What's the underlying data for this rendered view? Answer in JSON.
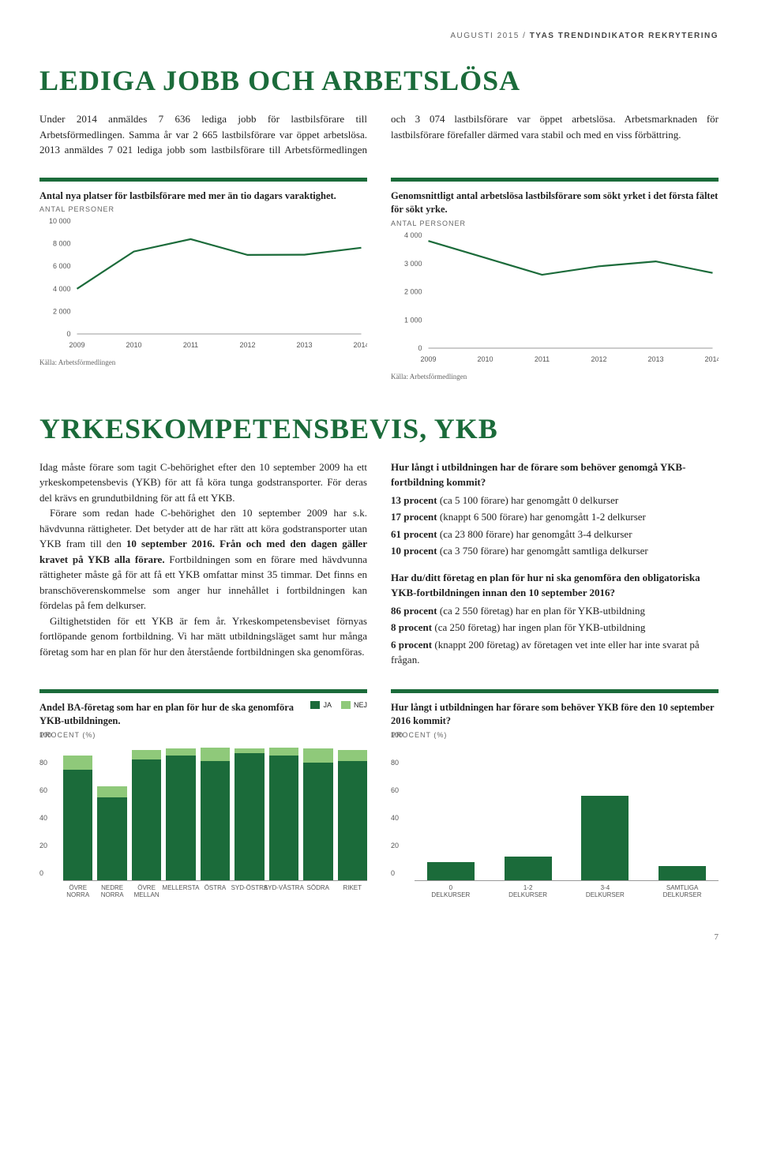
{
  "meta": {
    "left": "AUGUSTI 2015 / ",
    "right": "TYAS TRENDINDIKATOR REKRYTERING"
  },
  "section1": {
    "title": "LEDIGA JOBB OCH ARBETSLÖSA",
    "body": "Under 2014 anmäldes 7 636 lediga jobb för lastbilsförare till Arbetsförmedlingen. Samma år var 2 665 lastbilsförare var öppet arbetslösa. 2013 anmäldes 7 021 lediga jobb som lastbilsförare till Arbetsförmedlingen och 3 074 lastbilsförare var öppet arbetslösa. Arbetsmarknaden för lastbilsförare förefaller därmed vara stabil och med en viss förbättring."
  },
  "chart1": {
    "title": "Antal nya platser för lastbilsförare med mer än tio dagars varaktighet.",
    "sub": "ANTAL PERSONER",
    "type": "line",
    "x": [
      "2009",
      "2010",
      "2011",
      "2012",
      "2013",
      "2014"
    ],
    "y": [
      4000,
      7300,
      8400,
      7000,
      7021,
      7636
    ],
    "ylim": [
      0,
      10000
    ],
    "ytick_step": 2000,
    "line_color": "#1b6b3a",
    "line_width": 2.2,
    "source": "Källa: Arbetsförmedlingen"
  },
  "chart2": {
    "title": "Genomsnittligt antal arbetslösa lastbilsförare som sökt yrket i det första fältet för sökt yrke.",
    "sub": "ANTAL PERSONER",
    "type": "line",
    "x": [
      "2009",
      "2010",
      "2011",
      "2012",
      "2013",
      "2014"
    ],
    "y": [
      3800,
      3200,
      2600,
      2900,
      3074,
      2665
    ],
    "ylim": [
      0,
      4000
    ],
    "ytick_step": 1000,
    "line_color": "#1b6b3a",
    "line_width": 2.2,
    "source": "Källa: Arbetsförmedlingen"
  },
  "section2": {
    "title": "YRKESKOMPETENSBEVIS, YKB",
    "left": [
      "Idag måste förare som tagit C-behörighet efter den 10 september 2009 ha ett yrkeskompetensbevis (YKB) för att få köra tunga godstransporter. För deras del krävs en grundutbildning för att få ett YKB.",
      "Förare som redan hade C-behörighet den 10 september 2009 har s.k. hävdvunna rättigheter. Det betyder att de har rätt att köra godstransporter utan YKB fram till den <b>10 september 2016. Från och med den dagen gäller kravet på YKB alla förare.</b> Fortbildningen som en förare med hävdvunna rättigheter måste gå för att få ett YKB omfattar minst 35 timmar. Det finns en branschöverenskommelse som anger hur innehållet i fortbildningen kan fördelas på fem delkurser.",
      "Giltighetstiden för ett YKB är fem år. Yrkeskompetensbeviset förnyas fortlöpande genom fortbildning. Vi har mätt utbildningsläget samt hur många företag som har en plan för hur den återstående fortbildningen ska genomföras."
    ],
    "right_q1": {
      "head": "Hur långt i utbildningen har de förare som behöver genomgå YKB-fortbildning kommit?",
      "lines": [
        {
          "b": "13 procent",
          "t": " (ca 5 100 förare) har genomgått 0 delkurser"
        },
        {
          "b": "17 procent",
          "t": " (knappt 6 500 förare) har genomgått 1-2 delkurser"
        },
        {
          "b": "61 procent",
          "t": " (ca 23 800 förare) har genomgått 3-4 delkurser"
        },
        {
          "b": "10 procent",
          "t": " (ca 3 750 förare) har genomgått samtliga delkurser"
        }
      ]
    },
    "right_q2": {
      "head": "Har du/ditt företag en plan för hur ni ska genomföra den obligatoriska YKB-fortbildningen innan den 10 september 2016?",
      "lines": [
        {
          "b": "86 procent",
          "t": " (ca 2 550 företag) har en plan för YKB-utbildning"
        },
        {
          "b": "8 procent",
          "t": " (ca 250 företag) har ingen plan för YKB-utbildning"
        },
        {
          "b": "6 procent",
          "t": " (knappt 200 företag) av företagen vet inte eller har inte svarat på frågan."
        }
      ]
    }
  },
  "chart3": {
    "title": "Andel BA-företag som har en plan för hur de ska genomföra YKB-utbildningen.",
    "sub": "PROCENT (%)",
    "type": "stacked-bar",
    "ylim": [
      0,
      100
    ],
    "ytick_step": 20,
    "categories": [
      "ÖVRE NORRA",
      "NEDRE NORRA",
      "ÖVRE MELLAN",
      "MELLERSTA",
      "ÖSTRA",
      "SYD-ÖSTRA",
      "SYD-VÄSTRA",
      "SÖDRA",
      "RIKET"
    ],
    "series": [
      {
        "name": "JA",
        "color": "#1b6b3a",
        "values": [
          80,
          60,
          87,
          90,
          86,
          92,
          90,
          85,
          86
        ]
      },
      {
        "name": "NEJ",
        "color": "#8fc97a",
        "values": [
          10,
          8,
          7,
          5,
          10,
          3,
          6,
          10,
          8
        ]
      }
    ],
    "legend": [
      {
        "label": "JA",
        "color": "#1b6b3a"
      },
      {
        "label": "NEJ",
        "color": "#8fc97a"
      }
    ]
  },
  "chart4": {
    "title": "Hur långt i utbildningen har förare som behöver YKB före den 10 september 2016 kommit?",
    "sub": "PROCENT (%)",
    "type": "bar",
    "ylim": [
      0,
      100
    ],
    "ytick_step": 20,
    "categories": [
      "0 DELKURSER",
      "1-2 DELKURSER",
      "3-4 DELKURSER",
      "SAMTLIGA DELKURSER"
    ],
    "values": [
      13,
      17,
      61,
      10
    ],
    "bar_color": "#1b6b3a"
  },
  "page": "7"
}
